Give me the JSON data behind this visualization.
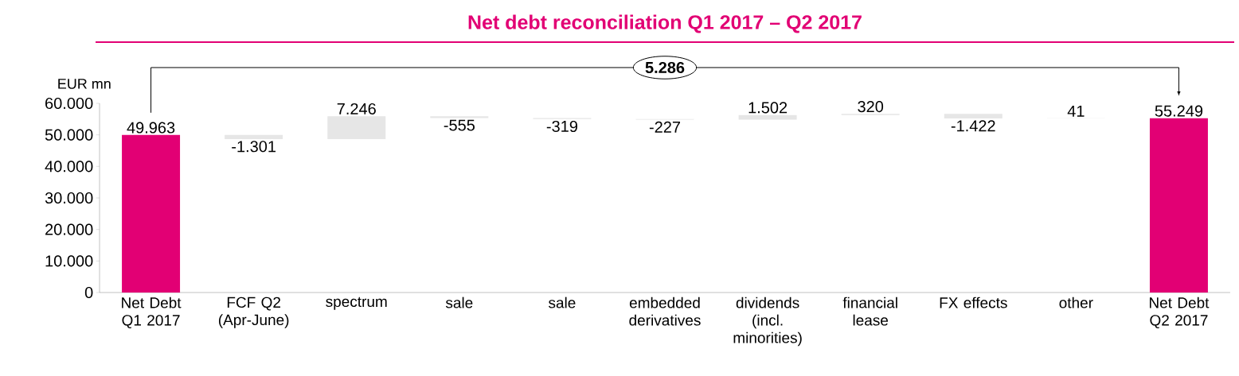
{
  "chart_data": {
    "type": "bar",
    "title": "Net debt reconciliation Q1 2017 – Q2 2017",
    "ylabel": "EUR mn",
    "categories": [
      "Net Debt Q1 2017",
      "FCF Q2 (Apr-June)",
      "spectrum",
      "sale",
      "sale",
      "embedded derivatives",
      "dividends (incl. minorities)",
      "financial lease",
      "FX effects",
      "other",
      "Net Debt Q2 2017"
    ],
    "values": [
      49963,
      -1301,
      7246,
      -555,
      -319,
      -227,
      1502,
      320,
      -1422,
      41,
      55249
    ],
    "base": [
      0,
      49963,
      48662,
      55908,
      55353,
      55034,
      54807,
      56309,
      56629,
      55207,
      0
    ],
    "colors": [
      "#e20074",
      "#e6e6e6",
      "#e6e6e6",
      "#e6e6e6",
      "#e6e6e6",
      "#e6e6e6",
      "#e6e6e6",
      "#e6e6e6",
      "#e6e6e6",
      "#e6e6e6",
      "#e20074"
    ],
    "value_labels": [
      "49.963",
      "-1.301",
      "7.246",
      "-555",
      "-319",
      "-227",
      "1.502",
      "320",
      "-1.422",
      "41",
      "55.249"
    ],
    "ylim": [
      0,
      60000
    ],
    "yticks": [
      {
        "value": 0,
        "label": "0"
      },
      {
        "value": 10000,
        "label": "10.000"
      },
      {
        "value": 20000,
        "label": "20.000"
      },
      {
        "value": 30000,
        "label": "30.000"
      },
      {
        "value": 40000,
        "label": "40.000"
      },
      {
        "value": 50000,
        "label": "50.000"
      },
      {
        "value": 60000,
        "label": "60.000"
      }
    ],
    "annotations": [
      "5.286"
    ]
  }
}
